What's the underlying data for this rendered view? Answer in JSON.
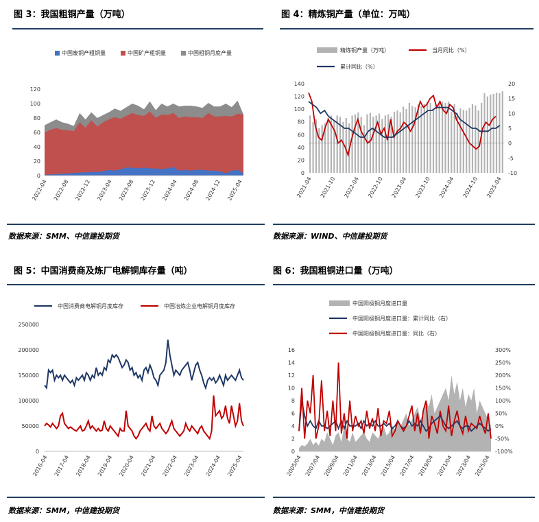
{
  "panels": [
    {
      "title": "图 3：我国粗铜产量（万吨）",
      "source": "数据来源：SMM、中信建投期货"
    },
    {
      "title": "图 4：精炼铜产量（单位：万吨）",
      "source": "数据来源：WIND、中信建投期货"
    },
    {
      "title": "图 5：中国消费商及炼厂电解铜库存量（吨）",
      "source": "数据来源：SMM，中信建投期货"
    },
    {
      "title": "图 6：我国粗铜进口量（万吨）",
      "source": "数据来源：SMM，中信建投期货"
    }
  ],
  "chart_data": [
    {
      "type": "area",
      "series": [
        {
          "name": "中国废铜产粗铜量",
          "color": "#4472c4",
          "values": [
            1,
            1.5,
            2,
            2.5,
            3,
            3.5,
            4,
            4.5,
            5,
            5,
            6,
            8,
            7,
            9,
            11,
            11,
            10,
            11,
            10,
            10,
            9,
            10,
            12,
            7,
            8,
            7,
            8,
            8,
            7,
            7,
            6,
            3,
            7,
            8,
            3
          ]
        },
        {
          "name": "中国矿产粗铜量",
          "color": "#c0504d",
          "values": [
            59,
            62,
            64,
            61,
            60,
            58,
            70,
            62,
            72,
            63,
            68,
            70,
            74,
            70,
            72,
            76,
            74,
            72,
            79,
            70,
            76,
            74,
            75,
            73,
            74,
            74,
            73,
            72,
            80,
            75,
            76,
            80,
            75,
            78,
            82
          ]
        },
        {
          "name": "中国粗铜月度产量",
          "color": "#8c8c8c",
          "values": [
            70,
            74,
            78,
            74,
            72,
            69,
            87,
            78,
            88,
            80,
            84,
            88,
            93,
            90,
            95,
            100,
            97,
            92,
            103,
            91,
            100,
            96,
            100,
            96,
            97,
            97,
            96,
            94,
            101,
            96,
            96,
            100,
            95,
            104,
            85
          ]
        }
      ],
      "x_labels": [
        "2022-04",
        "2022-08",
        "2022-12",
        "2023-04",
        "2023-08",
        "2023-12",
        "2024-04",
        "2024-08",
        "2024-12",
        "2025-04"
      ],
      "y_ticks": [
        0,
        20,
        40,
        60,
        80,
        100,
        120
      ],
      "ylim": [
        0,
        120
      ]
    },
    {
      "type": "bar",
      "series": [
        {
          "name": "精炼铜产量（万吨）",
          "axis": "left",
          "color": "#b3b3b3",
          "values": [
            90,
            80,
            84,
            70,
            75,
            78,
            86,
            90,
            82,
            90,
            88,
            80,
            86,
            78,
            90,
            92,
            95,
            88,
            75,
            92,
            94,
            88,
            90,
            93,
            85,
            90,
            92,
            88,
            96,
            98,
            95,
            104,
            100,
            110,
            105,
            103,
            108,
            105,
            108,
            112,
            110,
            98,
            107,
            108,
            112,
            110,
            112,
            96,
            108,
            94,
            101,
            99,
            98,
            102,
            108,
            106,
            98,
            110,
            125,
            120,
            123,
            124,
            126,
            125,
            128
          ]
        },
        {
          "name": "当月同比（%）",
          "axis": "right",
          "color": "#c00000",
          "values": [
            17,
            14,
            6,
            2,
            1,
            5,
            8,
            6,
            4,
            0,
            1,
            -1,
            -4,
            1,
            5,
            8,
            4,
            2,
            0,
            1,
            4,
            7,
            3,
            5,
            1,
            8,
            2,
            4,
            5,
            7,
            6,
            4,
            6,
            10,
            14,
            12,
            13,
            15,
            16,
            12,
            14,
            11,
            10,
            13,
            12,
            8,
            6,
            4,
            2,
            0,
            -1,
            -2,
            -1,
            5,
            7,
            6,
            8,
            9
          ]
        },
        {
          "name": "累计同比（%）",
          "axis": "right",
          "color": "#203864",
          "values": [
            14,
            13,
            12,
            10,
            11,
            9,
            8,
            7,
            6,
            5,
            5,
            4,
            3,
            2,
            2,
            4,
            5,
            4,
            3,
            2,
            2,
            2,
            3,
            4,
            5,
            6,
            7,
            8,
            9,
            10,
            11,
            11,
            12,
            12,
            12,
            12,
            11,
            10,
            8,
            7,
            6,
            5,
            5,
            4,
            4,
            4,
            5,
            5,
            6
          ]
        }
      ],
      "x_labels": [
        "2021-04",
        "2021-10",
        "2022-04",
        "2022-10",
        "2023-04",
        "2023-10",
        "2024-04",
        "2024-10",
        "2025-04"
      ],
      "y_ticks": [
        0,
        20,
        40,
        60,
        80,
        100,
        120,
        140
      ],
      "y2_ticks": [
        -10,
        -5,
        0,
        5,
        10,
        15,
        20
      ],
      "ylim": [
        0,
        140
      ],
      "y2lim": [
        -10,
        20
      ]
    },
    {
      "type": "line",
      "series": [
        {
          "name": "中国消费商电解铜月度库存",
          "color": "#203864",
          "values": [
            130000,
            125000,
            160000,
            155000,
            160000,
            140000,
            150000,
            145000,
            150000,
            140000,
            150000,
            145000,
            140000,
            135000,
            140000,
            130000,
            145000,
            140000,
            145000,
            150000,
            140000,
            155000,
            150000,
            140000,
            150000,
            145000,
            165000,
            150000,
            155000,
            150000,
            165000,
            160000,
            180000,
            175000,
            190000,
            185000,
            190000,
            185000,
            175000,
            165000,
            170000,
            180000,
            175000,
            160000,
            165000,
            150000,
            155000,
            145000,
            150000,
            140000,
            160000,
            165000,
            155000,
            170000,
            160000,
            145000,
            140000,
            130000,
            150000,
            155000,
            160000,
            175000,
            220000,
            190000,
            170000,
            150000,
            160000,
            155000,
            150000,
            160000,
            165000,
            170000,
            175000,
            160000,
            140000,
            155000,
            170000,
            175000,
            160000,
            150000,
            135000,
            125000,
            140000,
            145000,
            140000,
            145000,
            135000,
            140000,
            150000,
            140000,
            130000,
            150000,
            140000,
            145000,
            150000,
            145000,
            140000,
            150000,
            160000,
            145000,
            140000
          ]
        },
        {
          "name": "中国冶炼企业电解铜月度库存",
          "color": "#c00000",
          "values": [
            50000,
            55000,
            52000,
            48000,
            55000,
            50000,
            45000,
            50000,
            70000,
            75000,
            55000,
            50000,
            45000,
            48000,
            45000,
            42000,
            40000,
            45000,
            50000,
            40000,
            42000,
            50000,
            60000,
            45000,
            50000,
            45000,
            40000,
            45000,
            40000,
            42000,
            60000,
            45000,
            40000,
            50000,
            45000,
            40000,
            35000,
            30000,
            45000,
            40000,
            40000,
            80000,
            50000,
            45000,
            40000,
            30000,
            25000,
            30000,
            40000,
            45000,
            50000,
            55000,
            45000,
            40000,
            70000,
            50000,
            45000,
            50000,
            55000,
            45000,
            40000,
            35000,
            40000,
            50000,
            60000,
            45000,
            40000,
            35000,
            30000,
            35000,
            40000,
            55000,
            45000,
            40000,
            50000,
            45000,
            40000,
            35000,
            45000,
            50000,
            40000,
            35000,
            30000,
            25000,
            40000,
            110000,
            70000,
            75000,
            80000,
            65000,
            70000,
            90000,
            65000,
            55000,
            90000,
            70000,
            50000,
            60000,
            95000,
            60000,
            50000
          ]
        }
      ],
      "x_labels": [
        "2016-04",
        "2017-04",
        "2018-04",
        "2019-04",
        "2020-04",
        "2021-04",
        "2022-04",
        "2023-04",
        "2024-04",
        "2025-04"
      ],
      "y_ticks": [
        0,
        50000,
        100000,
        150000,
        200000,
        250000
      ],
      "ylim": [
        0,
        250000
      ]
    },
    {
      "type": "line",
      "series": [
        {
          "name": "中国阳极铜月度进口量",
          "axis": "left",
          "color": "#b3b3b3",
          "values": [
            0.5,
            1,
            0.8,
            1.2,
            2,
            1,
            1.5,
            0.9,
            2,
            1.5,
            3,
            2,
            1,
            2.5,
            3,
            1.5,
            4,
            2,
            1.5,
            3,
            1.5,
            2,
            2.5,
            3,
            2,
            1.5,
            3,
            2.5,
            2,
            3,
            4,
            2.5,
            3,
            4,
            3.5,
            4.5,
            4,
            5,
            6,
            4,
            5,
            6,
            7,
            5,
            6,
            8,
            7,
            9,
            6,
            7,
            8,
            9,
            10,
            8,
            12,
            9,
            11,
            8,
            10,
            7,
            9,
            8,
            10,
            6,
            8,
            7,
            6,
            5,
            4
          ]
        },
        {
          "name": "中国阳极铜月度进口量：累计同比（右）",
          "axis": "right",
          "color": "#203864",
          "values": [
            -20,
            100,
            40,
            0,
            20,
            0,
            -10,
            20,
            0,
            0,
            -10,
            0,
            10,
            20,
            -10,
            20,
            -10,
            20,
            0,
            0,
            0,
            10,
            -10,
            20,
            0,
            10,
            0,
            20,
            0,
            0,
            10,
            0,
            10,
            -10,
            0,
            20,
            0,
            -10,
            0,
            20,
            0,
            10,
            0,
            20,
            0,
            -20,
            -10,
            10,
            20,
            30,
            40,
            20,
            0,
            -10,
            0,
            10,
            20,
            0,
            -10,
            0,
            0,
            -20,
            -10,
            0,
            10,
            0,
            -10,
            -20,
            -10
          ]
        },
        {
          "name": "中国阳极铜月度进口量：同比（右）",
          "axis": "right",
          "color": "#c00000",
          "values": [
            -20,
            150,
            -50,
            100,
            50,
            200,
            -50,
            0,
            180,
            -20,
            60,
            -40,
            100,
            -20,
            250,
            -30,
            50,
            -50,
            100,
            -20,
            40,
            0,
            20,
            -30,
            60,
            -10,
            30,
            -20,
            70,
            -40,
            20,
            10,
            60,
            -40,
            -20,
            20,
            0,
            -20,
            0,
            40,
            80,
            -20,
            50,
            -30,
            60,
            100,
            -50,
            40,
            10,
            -30,
            60,
            0,
            -20,
            80,
            -40,
            20,
            60,
            0,
            -30,
            40,
            -20,
            10,
            0,
            -10,
            40,
            0,
            -30,
            50,
            -50
          ]
        }
      ],
      "x_labels": [
        "2005/04",
        "2007/04",
        "2009/04",
        "2011/04",
        "2013/04",
        "2015/04",
        "2017/04",
        "2019/04",
        "2021/04",
        "2023/04",
        "2025/04"
      ],
      "y_ticks": [
        0,
        2,
        4,
        6,
        8,
        10,
        12,
        14,
        16
      ],
      "y2_ticks": [
        "-100%",
        "-50%",
        "0%",
        "50%",
        "100%",
        "150%",
        "200%",
        "250%",
        "300%"
      ],
      "ylim": [
        0,
        16
      ],
      "y2lim": [
        -100,
        300
      ]
    }
  ]
}
